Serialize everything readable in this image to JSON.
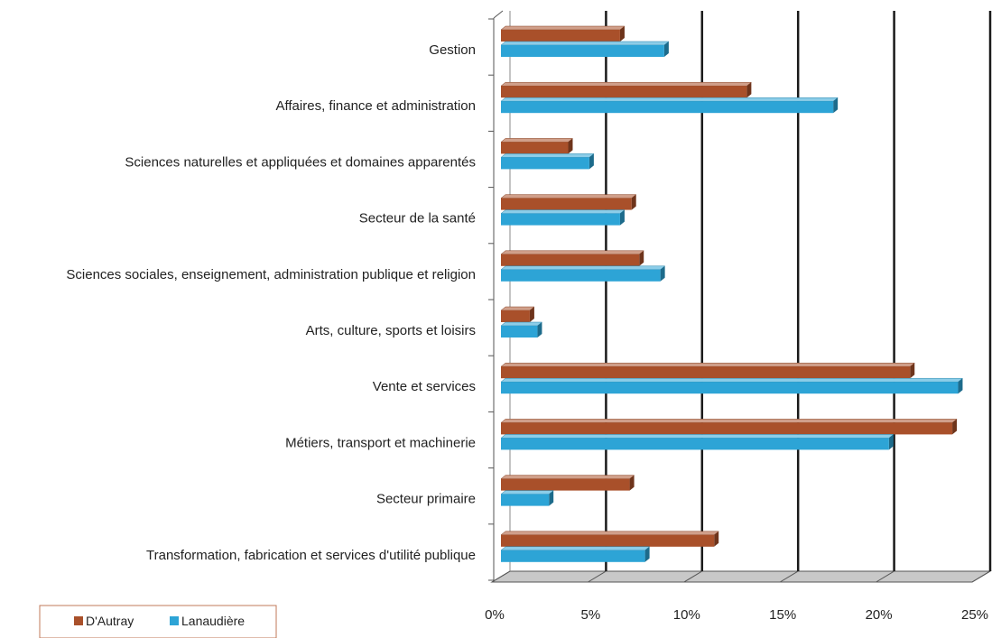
{
  "chart_data": {
    "type": "bar",
    "orientation": "horizontal",
    "categories": [
      "Gestion",
      "Affaires, finance et administration",
      "Sciences naturelles et appliquées et domaines apparentés",
      "Secteur de la santé",
      "Sciences sociales, enseignement, administration publique et religion",
      "Arts, culture, sports et loisirs",
      "Vente et services",
      "Métiers, transport et machinerie",
      "Secteur primaire",
      "Transformation, fabrication et services d'utilité publique"
    ],
    "series": [
      {
        "name": "D'Autray",
        "color": "#A9502A",
        "values": [
          6.2,
          12.8,
          3.5,
          6.8,
          7.2,
          1.5,
          21.3,
          23.5,
          6.7,
          11.1
        ]
      },
      {
        "name": "Lanaudière",
        "color": "#2DA4D6",
        "values": [
          8.5,
          17.3,
          4.6,
          6.2,
          8.3,
          1.9,
          23.8,
          20.2,
          2.5,
          7.5
        ]
      }
    ],
    "x_ticks": [
      "0%",
      "5%",
      "10%",
      "15%",
      "20%",
      "25%"
    ],
    "xlim": [
      0,
      25
    ],
    "grid": true,
    "legend_position": "bottom-left"
  }
}
